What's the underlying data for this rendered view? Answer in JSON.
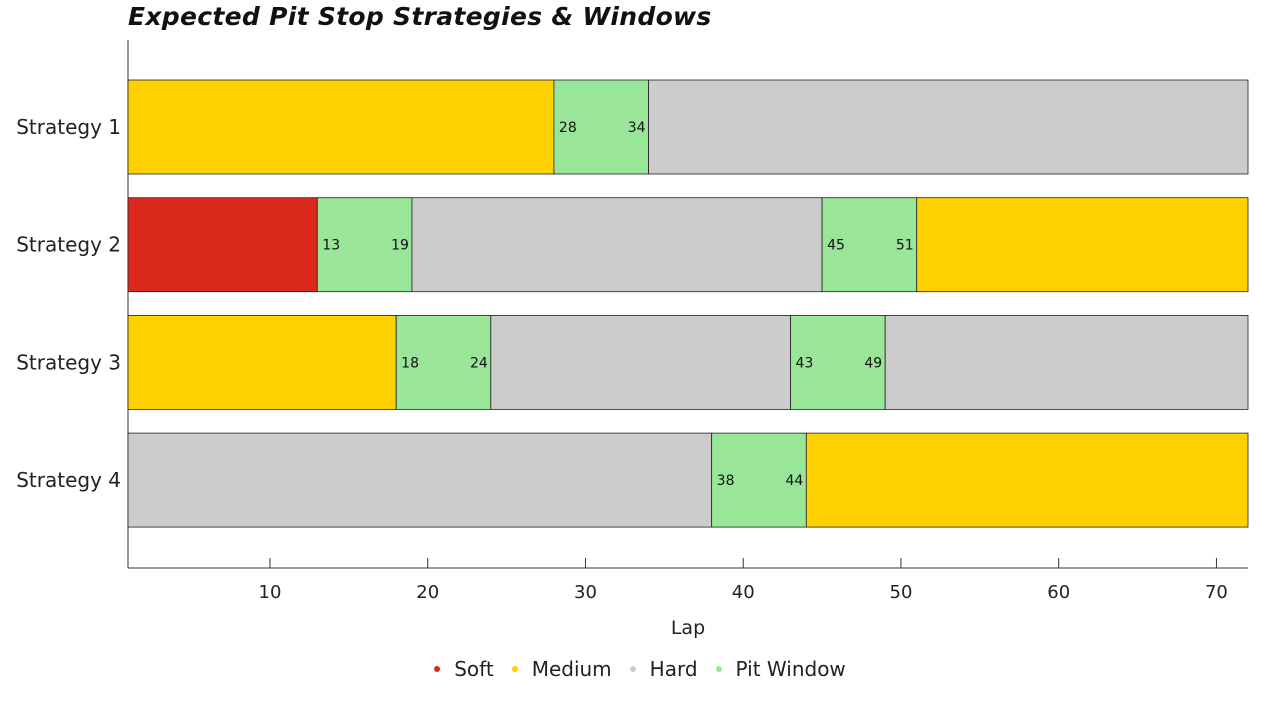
{
  "chart_data": {
    "type": "bar",
    "orientation": "horizontal",
    "stacked": true,
    "title": "Expected Pit Stop Strategies & Windows",
    "xlabel": "Lap",
    "ylabel": "",
    "xlim": [
      1,
      72
    ],
    "x_ticks": [
      10,
      20,
      30,
      40,
      50,
      60,
      70
    ],
    "grid": false,
    "legend_position": "bottom",
    "categories": [
      "Strategy 1",
      "Strategy 2",
      "Strategy 3",
      "Strategy 4"
    ],
    "series_colors": {
      "Soft": "#da291c",
      "Medium": "#ffd100",
      "Hard": "#cccccc",
      "Pit Window": "#99e699"
    },
    "legend": [
      "Soft",
      "Medium",
      "Hard",
      "Pit Window"
    ],
    "strategies": [
      {
        "name": "Strategy 1",
        "segments": [
          {
            "compound": "Medium",
            "start": 1,
            "end": 28
          },
          {
            "compound": "Pit Window",
            "start": 28,
            "end": 34
          },
          {
            "compound": "Hard",
            "start": 34,
            "end": 72
          }
        ]
      },
      {
        "name": "Strategy 2",
        "segments": [
          {
            "compound": "Soft",
            "start": 1,
            "end": 13
          },
          {
            "compound": "Pit Window",
            "start": 13,
            "end": 19
          },
          {
            "compound": "Hard",
            "start": 19,
            "end": 45
          },
          {
            "compound": "Pit Window",
            "start": 45,
            "end": 51
          },
          {
            "compound": "Medium",
            "start": 51,
            "end": 72
          }
        ]
      },
      {
        "name": "Strategy 3",
        "segments": [
          {
            "compound": "Medium",
            "start": 1,
            "end": 18
          },
          {
            "compound": "Pit Window",
            "start": 18,
            "end": 24
          },
          {
            "compound": "Hard",
            "start": 24,
            "end": 43
          },
          {
            "compound": "Pit Window",
            "start": 43,
            "end": 49
          },
          {
            "compound": "Hard",
            "start": 49,
            "end": 72
          }
        ]
      },
      {
        "name": "Strategy 4",
        "segments": [
          {
            "compound": "Hard",
            "start": 1,
            "end": 38
          },
          {
            "compound": "Pit Window",
            "start": 38,
            "end": 44
          },
          {
            "compound": "Medium",
            "start": 44,
            "end": 72
          }
        ]
      }
    ]
  }
}
